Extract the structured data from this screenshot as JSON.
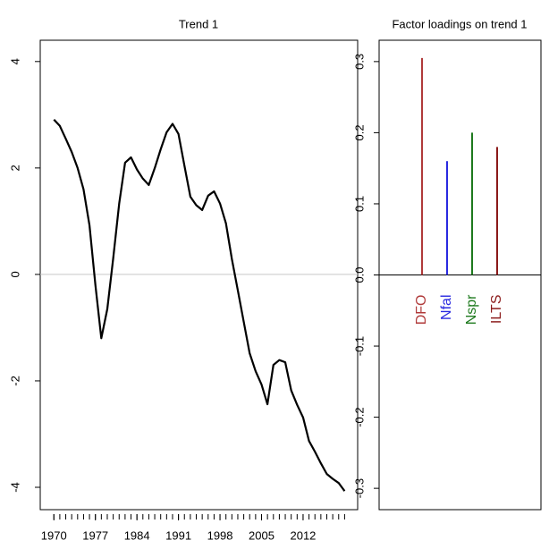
{
  "chart_data": [
    {
      "type": "line",
      "title": "Trend 1",
      "x": [
        1970,
        1971,
        1972,
        1973,
        1974,
        1975,
        1976,
        1977,
        1978,
        1979,
        1980,
        1981,
        1982,
        1983,
        1984,
        1985,
        1986,
        1987,
        1988,
        1989,
        1990,
        1991,
        1992,
        1993,
        1994,
        1995,
        1996,
        1997,
        1998,
        1999,
        2000,
        2001,
        2002,
        2003,
        2004,
        2005,
        2006,
        2007,
        2008,
        2009,
        2010,
        2011,
        2012,
        2013,
        2014,
        2015,
        2016,
        2017,
        2018,
        2019
      ],
      "series": [
        {
          "color": "#000000",
          "values": [
            2.91,
            2.79,
            2.55,
            2.3,
            2.0,
            1.6,
            0.92,
            -0.2,
            -1.2,
            -0.65,
            0.3,
            1.33,
            2.1,
            2.2,
            1.97,
            1.8,
            1.68,
            2.0,
            2.35,
            2.67,
            2.83,
            2.64,
            2.05,
            1.46,
            1.3,
            1.21,
            1.48,
            1.56,
            1.33,
            0.96,
            0.29,
            -0.3,
            -0.89,
            -1.48,
            -1.82,
            -2.07,
            -2.44,
            -1.7,
            -1.61,
            -1.65,
            -2.18,
            -2.45,
            -2.69,
            -3.13,
            -3.33,
            -3.55,
            -3.75,
            -3.84,
            -3.92,
            -4.07
          ]
        }
      ],
      "xlim": [
        1967.7,
        2021.2
      ],
      "xticks": [
        1970,
        1977,
        1984,
        1991,
        1998,
        2005,
        2012
      ],
      "ylim": [
        -4.42,
        4.4
      ],
      "yticks": [
        -4,
        -2,
        0,
        2,
        4
      ]
    },
    {
      "type": "bar",
      "title": "Factor loadings on trend 1",
      "categories": [
        "DFO",
        "Nfal",
        "Nspr",
        "ILTS"
      ],
      "values": [
        0.305,
        0.16,
        0.2,
        0.18
      ],
      "colors": [
        "#b03a3a",
        "#2a2ae0",
        "#1e7a1e",
        "#8b1a1a"
      ],
      "ylim": [
        -0.33,
        0.33
      ],
      "yticks": [
        {
          "value": -0.3,
          "label": "-0.3"
        },
        {
          "value": -0.2,
          "label": "-0.2"
        },
        {
          "value": -0.1,
          "label": "-0.1"
        },
        {
          "value": 0,
          "label": "0.0"
        },
        {
          "value": 0.1,
          "label": "0.1"
        },
        {
          "value": 0.2,
          "label": "0.2"
        },
        {
          "value": 0.3,
          "label": "0.3"
        }
      ]
    }
  ]
}
